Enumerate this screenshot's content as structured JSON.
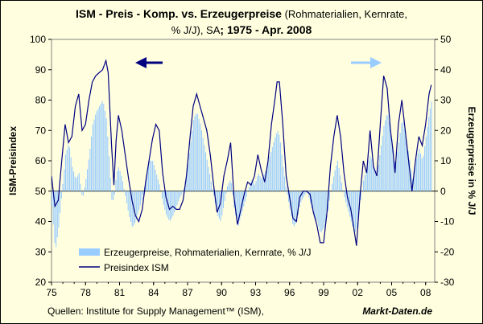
{
  "chart_data": {
    "type": "bar+line",
    "title_bold_1": "ISM - Preis - Komp. vs. Erzeugerpreise",
    "title_normal_1": " (Rohmaterialien, Kernrate,",
    "title_normal_2": "% J/J), SA",
    "title_bold_2": "; 1975 - Apr. 2008",
    "ylabel_left": "ISM-Preisindex",
    "ylabel_right": "Erzeugerpreise in % J/J",
    "y_left_range": [
      20,
      100
    ],
    "y_right_range": [
      -30,
      50
    ],
    "y_left_ticks": [
      "20",
      "30",
      "40",
      "50",
      "60",
      "70",
      "80",
      "90",
      "100"
    ],
    "y_right_ticks": [
      "-30",
      "-20",
      "-10",
      "0",
      "10",
      "20",
      "30",
      "40",
      "50"
    ],
    "x_range": [
      1975,
      2008.8
    ],
    "x_ticks": [
      {
        "year": 1975,
        "label": "75"
      },
      {
        "year": 1978,
        "label": "78"
      },
      {
        "year": 1981,
        "label": "81"
      },
      {
        "year": 1984,
        "label": "84"
      },
      {
        "year": 1987,
        "label": "87"
      },
      {
        "year": 1990,
        "label": "90"
      },
      {
        "year": 1993,
        "label": "93"
      },
      {
        "year": 1996,
        "label": "96"
      },
      {
        "year": 1999,
        "label": "99"
      },
      {
        "year": 2002,
        "label": "02"
      },
      {
        "year": 2005,
        "label": "05"
      },
      {
        "year": 2008,
        "label": "08"
      }
    ],
    "legend": [
      {
        "name": "Erzeugerpreise, Rohmaterialien, Kernrate, % J/J",
        "axis": "right",
        "color": "#99CCFF"
      },
      {
        "name": "Preisindex ISM",
        "axis": "left",
        "color": "#000080"
      }
    ],
    "series": [
      {
        "name": "Preisindex ISM",
        "axis": "left",
        "color": "#000080",
        "points": [
          [
            1975.0,
            55
          ],
          [
            1975.3,
            45
          ],
          [
            1975.6,
            47
          ],
          [
            1975.9,
            60
          ],
          [
            1976.2,
            72
          ],
          [
            1976.5,
            66
          ],
          [
            1976.8,
            68
          ],
          [
            1977.1,
            78
          ],
          [
            1977.4,
            82
          ],
          [
            1977.7,
            70
          ],
          [
            1978.0,
            72
          ],
          [
            1978.3,
            80
          ],
          [
            1978.6,
            86
          ],
          [
            1978.9,
            88
          ],
          [
            1979.2,
            89
          ],
          [
            1979.5,
            90
          ],
          [
            1979.8,
            93
          ],
          [
            1980.0,
            89
          ],
          [
            1980.3,
            65
          ],
          [
            1980.5,
            52
          ],
          [
            1980.7,
            67
          ],
          [
            1980.9,
            75
          ],
          [
            1981.2,
            70
          ],
          [
            1981.5,
            62
          ],
          [
            1981.8,
            54
          ],
          [
            1982.1,
            47
          ],
          [
            1982.4,
            42
          ],
          [
            1982.7,
            40
          ],
          [
            1983.0,
            44
          ],
          [
            1983.3,
            53
          ],
          [
            1983.6,
            60
          ],
          [
            1983.9,
            67
          ],
          [
            1984.2,
            72
          ],
          [
            1984.5,
            70
          ],
          [
            1984.8,
            56
          ],
          [
            1985.1,
            48
          ],
          [
            1985.4,
            44
          ],
          [
            1985.7,
            45
          ],
          [
            1986.0,
            44
          ],
          [
            1986.3,
            44
          ],
          [
            1986.6,
            47
          ],
          [
            1986.9,
            55
          ],
          [
            1987.2,
            67
          ],
          [
            1987.5,
            78
          ],
          [
            1987.8,
            82
          ],
          [
            1988.1,
            78
          ],
          [
            1988.4,
            74
          ],
          [
            1988.7,
            70
          ],
          [
            1989.0,
            62
          ],
          [
            1989.3,
            52
          ],
          [
            1989.6,
            43
          ],
          [
            1989.9,
            46
          ],
          [
            1990.2,
            55
          ],
          [
            1990.5,
            60
          ],
          [
            1990.8,
            66
          ],
          [
            1991.1,
            48
          ],
          [
            1991.4,
            39
          ],
          [
            1991.7,
            44
          ],
          [
            1992.0,
            49
          ],
          [
            1992.3,
            53
          ],
          [
            1992.6,
            52
          ],
          [
            1992.9,
            55
          ],
          [
            1993.2,
            62
          ],
          [
            1993.5,
            57
          ],
          [
            1993.8,
            53
          ],
          [
            1994.1,
            60
          ],
          [
            1994.4,
            72
          ],
          [
            1994.7,
            80
          ],
          [
            1994.9,
            86
          ],
          [
            1995.1,
            86
          ],
          [
            1995.4,
            72
          ],
          [
            1995.7,
            55
          ],
          [
            1996.0,
            48
          ],
          [
            1996.3,
            41
          ],
          [
            1996.6,
            40
          ],
          [
            1996.9,
            48
          ],
          [
            1997.2,
            50
          ],
          [
            1997.5,
            50
          ],
          [
            1997.8,
            49
          ],
          [
            1998.1,
            43
          ],
          [
            1998.4,
            39
          ],
          [
            1998.7,
            33
          ],
          [
            1999.0,
            33
          ],
          [
            1999.3,
            43
          ],
          [
            1999.6,
            58
          ],
          [
            1999.9,
            68
          ],
          [
            2000.2,
            75
          ],
          [
            2000.5,
            68
          ],
          [
            2000.8,
            56
          ],
          [
            2001.1,
            48
          ],
          [
            2001.4,
            44
          ],
          [
            2001.7,
            37
          ],
          [
            2001.9,
            32
          ],
          [
            2002.2,
            48
          ],
          [
            2002.5,
            60
          ],
          [
            2002.8,
            56
          ],
          [
            2003.1,
            70
          ],
          [
            2003.4,
            58
          ],
          [
            2003.7,
            55
          ],
          [
            2004.0,
            72
          ],
          [
            2004.3,
            88
          ],
          [
            2004.6,
            84
          ],
          [
            2004.9,
            70
          ],
          [
            2005.1,
            64
          ],
          [
            2005.3,
            56
          ],
          [
            2005.6,
            72
          ],
          [
            2005.9,
            80
          ],
          [
            2006.2,
            70
          ],
          [
            2006.5,
            60
          ],
          [
            2006.8,
            50
          ],
          [
            2007.1,
            60
          ],
          [
            2007.4,
            68
          ],
          [
            2007.7,
            65
          ],
          [
            2008.0,
            72
          ],
          [
            2008.3,
            82
          ],
          [
            2008.5,
            85
          ]
        ]
      },
      {
        "name": "Erzeugerpreise, Rohmaterialien, Kernrate, % J/J",
        "axis": "right",
        "color": "#99CCFF",
        "points": [
          [
            1975.0,
            -5
          ],
          [
            1975.3,
            -20
          ],
          [
            1975.6,
            -12
          ],
          [
            1975.9,
            0
          ],
          [
            1976.2,
            12
          ],
          [
            1976.5,
            16
          ],
          [
            1976.8,
            8
          ],
          [
            1977.1,
            4
          ],
          [
            1977.4,
            6
          ],
          [
            1977.7,
            -3
          ],
          [
            1978.0,
            4
          ],
          [
            1978.3,
            12
          ],
          [
            1978.6,
            22
          ],
          [
            1978.9,
            26
          ],
          [
            1979.2,
            28
          ],
          [
            1979.5,
            30
          ],
          [
            1979.8,
            24
          ],
          [
            1980.0,
            14
          ],
          [
            1980.3,
            -4
          ],
          [
            1980.5,
            -2
          ],
          [
            1980.7,
            6
          ],
          [
            1980.9,
            8
          ],
          [
            1981.2,
            4
          ],
          [
            1981.5,
            -2
          ],
          [
            1981.8,
            -8
          ],
          [
            1982.1,
            -12
          ],
          [
            1982.4,
            -10
          ],
          [
            1982.7,
            -6
          ],
          [
            1983.0,
            -2
          ],
          [
            1983.3,
            4
          ],
          [
            1983.6,
            10
          ],
          [
            1983.9,
            10
          ],
          [
            1984.2,
            6
          ],
          [
            1984.5,
            2
          ],
          [
            1984.8,
            -4
          ],
          [
            1985.1,
            -8
          ],
          [
            1985.4,
            -10
          ],
          [
            1985.7,
            -8
          ],
          [
            1986.0,
            -5
          ],
          [
            1986.3,
            -2
          ],
          [
            1986.6,
            0
          ],
          [
            1986.9,
            6
          ],
          [
            1987.2,
            15
          ],
          [
            1987.5,
            24
          ],
          [
            1987.8,
            26
          ],
          [
            1988.1,
            22
          ],
          [
            1988.4,
            16
          ],
          [
            1988.7,
            10
          ],
          [
            1989.0,
            4
          ],
          [
            1989.3,
            -2
          ],
          [
            1989.6,
            -8
          ],
          [
            1989.9,
            -10
          ],
          [
            1990.2,
            -4
          ],
          [
            1990.5,
            2
          ],
          [
            1990.8,
            4
          ],
          [
            1991.1,
            -6
          ],
          [
            1991.4,
            -12
          ],
          [
            1991.7,
            -8
          ],
          [
            1992.0,
            -4
          ],
          [
            1992.3,
            0
          ],
          [
            1992.6,
            4
          ],
          [
            1992.9,
            2
          ],
          [
            1993.2,
            6
          ],
          [
            1993.5,
            4
          ],
          [
            1993.8,
            6
          ],
          [
            1994.1,
            10
          ],
          [
            1994.4,
            14
          ],
          [
            1994.7,
            18
          ],
          [
            1994.9,
            20
          ],
          [
            1995.1,
            18
          ],
          [
            1995.4,
            8
          ],
          [
            1995.7,
            0
          ],
          [
            1996.0,
            -6
          ],
          [
            1996.3,
            -12
          ],
          [
            1996.6,
            -10
          ],
          [
            1996.9,
            -4
          ],
          [
            1997.2,
            -2
          ],
          [
            1997.5,
            0
          ],
          [
            1997.8,
            -4
          ],
          [
            1998.1,
            -8
          ],
          [
            1998.4,
            -10
          ],
          [
            1998.7,
            -14
          ],
          [
            1999.0,
            -12
          ],
          [
            1999.3,
            -8
          ],
          [
            1999.6,
            0
          ],
          [
            1999.9,
            6
          ],
          [
            2000.2,
            10
          ],
          [
            2000.5,
            4
          ],
          [
            2000.8,
            -2
          ],
          [
            2001.1,
            -6
          ],
          [
            2001.4,
            -10
          ],
          [
            2001.7,
            -14
          ],
          [
            2001.9,
            -12
          ],
          [
            2002.2,
            -4
          ],
          [
            2002.5,
            4
          ],
          [
            2002.8,
            8
          ],
          [
            2003.1,
            12
          ],
          [
            2003.4,
            8
          ],
          [
            2003.7,
            6
          ],
          [
            2004.0,
            14
          ],
          [
            2004.3,
            22
          ],
          [
            2004.6,
            26
          ],
          [
            2004.9,
            20
          ],
          [
            2005.1,
            14
          ],
          [
            2005.3,
            8
          ],
          [
            2005.6,
            16
          ],
          [
            2005.9,
            24
          ],
          [
            2006.2,
            18
          ],
          [
            2006.5,
            12
          ],
          [
            2006.8,
            4
          ],
          [
            2007.1,
            10
          ],
          [
            2007.4,
            14
          ],
          [
            2007.7,
            10
          ],
          [
            2008.0,
            18
          ],
          [
            2008.3,
            26
          ],
          [
            2008.5,
            30
          ]
        ]
      }
    ],
    "source": "Quellen: Institute for Supply Management™ (ISM),",
    "brand": "Markt-Daten.de"
  }
}
